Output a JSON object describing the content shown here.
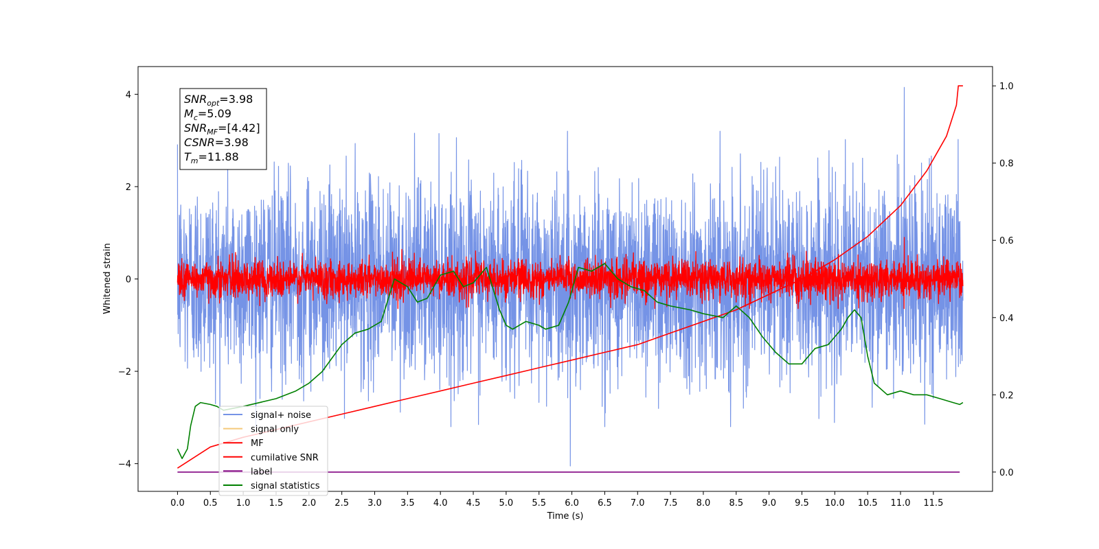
{
  "chart_data": {
    "type": "line",
    "xlabel": "Time (s)",
    "ylabel": "Whitened strain",
    "xlim": [
      -0.6,
      12.4
    ],
    "ylim": [
      -4.6,
      4.6
    ],
    "y2lim": [
      -0.05,
      1.05
    ],
    "x_ticks": [
      "0.0",
      "0.5",
      "1.0",
      "1.5",
      "2.0",
      "2.5",
      "3.0",
      "3.5",
      "4.0",
      "4.5",
      "5.0",
      "5.5",
      "6.0",
      "6.5",
      "7.0",
      "7.5",
      "8.0",
      "8.5",
      "9.0",
      "9.5",
      "10.0",
      "10.5",
      "11.0",
      "11.5"
    ],
    "x_tick_values": [
      0.0,
      0.5,
      1.0,
      1.5,
      2.0,
      2.5,
      3.0,
      3.5,
      4.0,
      4.5,
      5.0,
      5.5,
      6.0,
      6.5,
      7.0,
      7.5,
      8.0,
      8.5,
      9.0,
      9.5,
      10.0,
      10.5,
      11.0,
      11.5
    ],
    "y_ticks": [
      "4",
      "2",
      "0",
      "−2",
      "−4"
    ],
    "y_tick_values": [
      4,
      2,
      0,
      -2,
      -4
    ],
    "y2_ticks": [
      "1.0",
      "0.8",
      "0.6",
      "0.4",
      "0.2",
      "0.0"
    ],
    "y2_tick_values": [
      1.0,
      0.8,
      0.6,
      0.4,
      0.2,
      0.0
    ],
    "info_box": [
      {
        "base": "SNR",
        "sub": "opt",
        "value": "=3.98"
      },
      {
        "base": "M",
        "sub": "c",
        "value": "=5.09"
      },
      {
        "base": "SNR",
        "sub": "MF",
        "value": "=[4.42]"
      },
      {
        "base": "CSNR",
        "sub": "",
        "value": "=3.98"
      },
      {
        "base": "T",
        "sub": "m",
        "value": "=11.88"
      }
    ],
    "legend": {
      "placement": "lower-left",
      "entries": [
        {
          "label": "signal+ noise",
          "color": "#7593e6"
        },
        {
          "label": "signal only",
          "color": "#f5c97a"
        },
        {
          "label": "MF",
          "color": "#ff0000"
        },
        {
          "label": "cumilative SNR",
          "color": "#ff0000"
        },
        {
          "label": "label",
          "color": "#800080"
        },
        {
          "label": "signal statistics",
          "color": "#008000"
        }
      ]
    },
    "series": [
      {
        "name": "signal+ noise",
        "axis": "left",
        "color": "#7593e6",
        "style": "noise",
        "x_range": [
          0.0,
          11.95
        ],
        "mean": 0.0,
        "std": 1.0,
        "extremes": [
          4.15,
          -4.05
        ]
      },
      {
        "name": "MF",
        "axis": "left",
        "color": "#ff0000",
        "style": "noise",
        "x_range": [
          0.0,
          11.95
        ],
        "mean": 0.0,
        "std": 0.2,
        "extremes": [
          0.9,
          -0.42
        ]
      },
      {
        "name": "cumilative SNR",
        "axis": "right",
        "color": "#ff0000",
        "x": [
          0.0,
          0.5,
          1.0,
          1.5,
          2.0,
          2.5,
          3.0,
          3.5,
          4.0,
          4.5,
          5.0,
          5.5,
          6.0,
          6.5,
          7.0,
          7.5,
          8.0,
          8.5,
          9.0,
          9.5,
          10.0,
          10.5,
          11.0,
          11.4,
          11.7,
          11.85,
          11.88,
          11.95
        ],
        "y": [
          0.01,
          0.065,
          0.09,
          0.11,
          0.13,
          0.15,
          0.17,
          0.19,
          0.21,
          0.23,
          0.25,
          0.27,
          0.29,
          0.31,
          0.33,
          0.36,
          0.39,
          0.42,
          0.46,
          0.5,
          0.55,
          0.61,
          0.69,
          0.78,
          0.87,
          0.95,
          1.0,
          1.0
        ]
      },
      {
        "name": "label",
        "axis": "right",
        "color": "#800080",
        "x": [
          0.0,
          11.9
        ],
        "y": [
          0.0,
          0.0
        ]
      },
      {
        "name": "signal statistics",
        "axis": "right",
        "color": "#008000",
        "x": [
          0.0,
          0.07,
          0.15,
          0.2,
          0.27,
          0.35,
          0.5,
          0.6,
          0.7,
          1.0,
          1.5,
          1.8,
          2.0,
          2.2,
          2.5,
          2.7,
          2.9,
          3.1,
          3.3,
          3.5,
          3.65,
          3.8,
          4.0,
          4.2,
          4.35,
          4.5,
          4.7,
          4.9,
          5.0,
          5.1,
          5.3,
          5.5,
          5.6,
          5.8,
          5.95,
          6.1,
          6.3,
          6.5,
          6.7,
          6.9,
          7.1,
          7.3,
          7.5,
          7.8,
          8.0,
          8.3,
          8.5,
          8.7,
          8.9,
          9.1,
          9.3,
          9.5,
          9.7,
          9.9,
          10.0,
          10.1,
          10.2,
          10.3,
          10.4,
          10.5,
          10.6,
          10.8,
          11.0,
          11.2,
          11.4,
          11.6,
          11.8,
          11.9,
          11.95
        ],
        "y": [
          0.06,
          0.035,
          0.06,
          0.12,
          0.17,
          0.18,
          0.175,
          0.17,
          0.16,
          0.17,
          0.19,
          0.21,
          0.23,
          0.26,
          0.33,
          0.36,
          0.37,
          0.39,
          0.5,
          0.48,
          0.44,
          0.45,
          0.51,
          0.52,
          0.48,
          0.49,
          0.53,
          0.42,
          0.38,
          0.37,
          0.39,
          0.38,
          0.37,
          0.38,
          0.44,
          0.53,
          0.52,
          0.54,
          0.5,
          0.48,
          0.47,
          0.44,
          0.43,
          0.42,
          0.41,
          0.4,
          0.43,
          0.4,
          0.35,
          0.31,
          0.28,
          0.28,
          0.32,
          0.33,
          0.35,
          0.37,
          0.4,
          0.42,
          0.4,
          0.3,
          0.23,
          0.2,
          0.21,
          0.2,
          0.2,
          0.19,
          0.18,
          0.175,
          0.18
        ]
      }
    ]
  }
}
